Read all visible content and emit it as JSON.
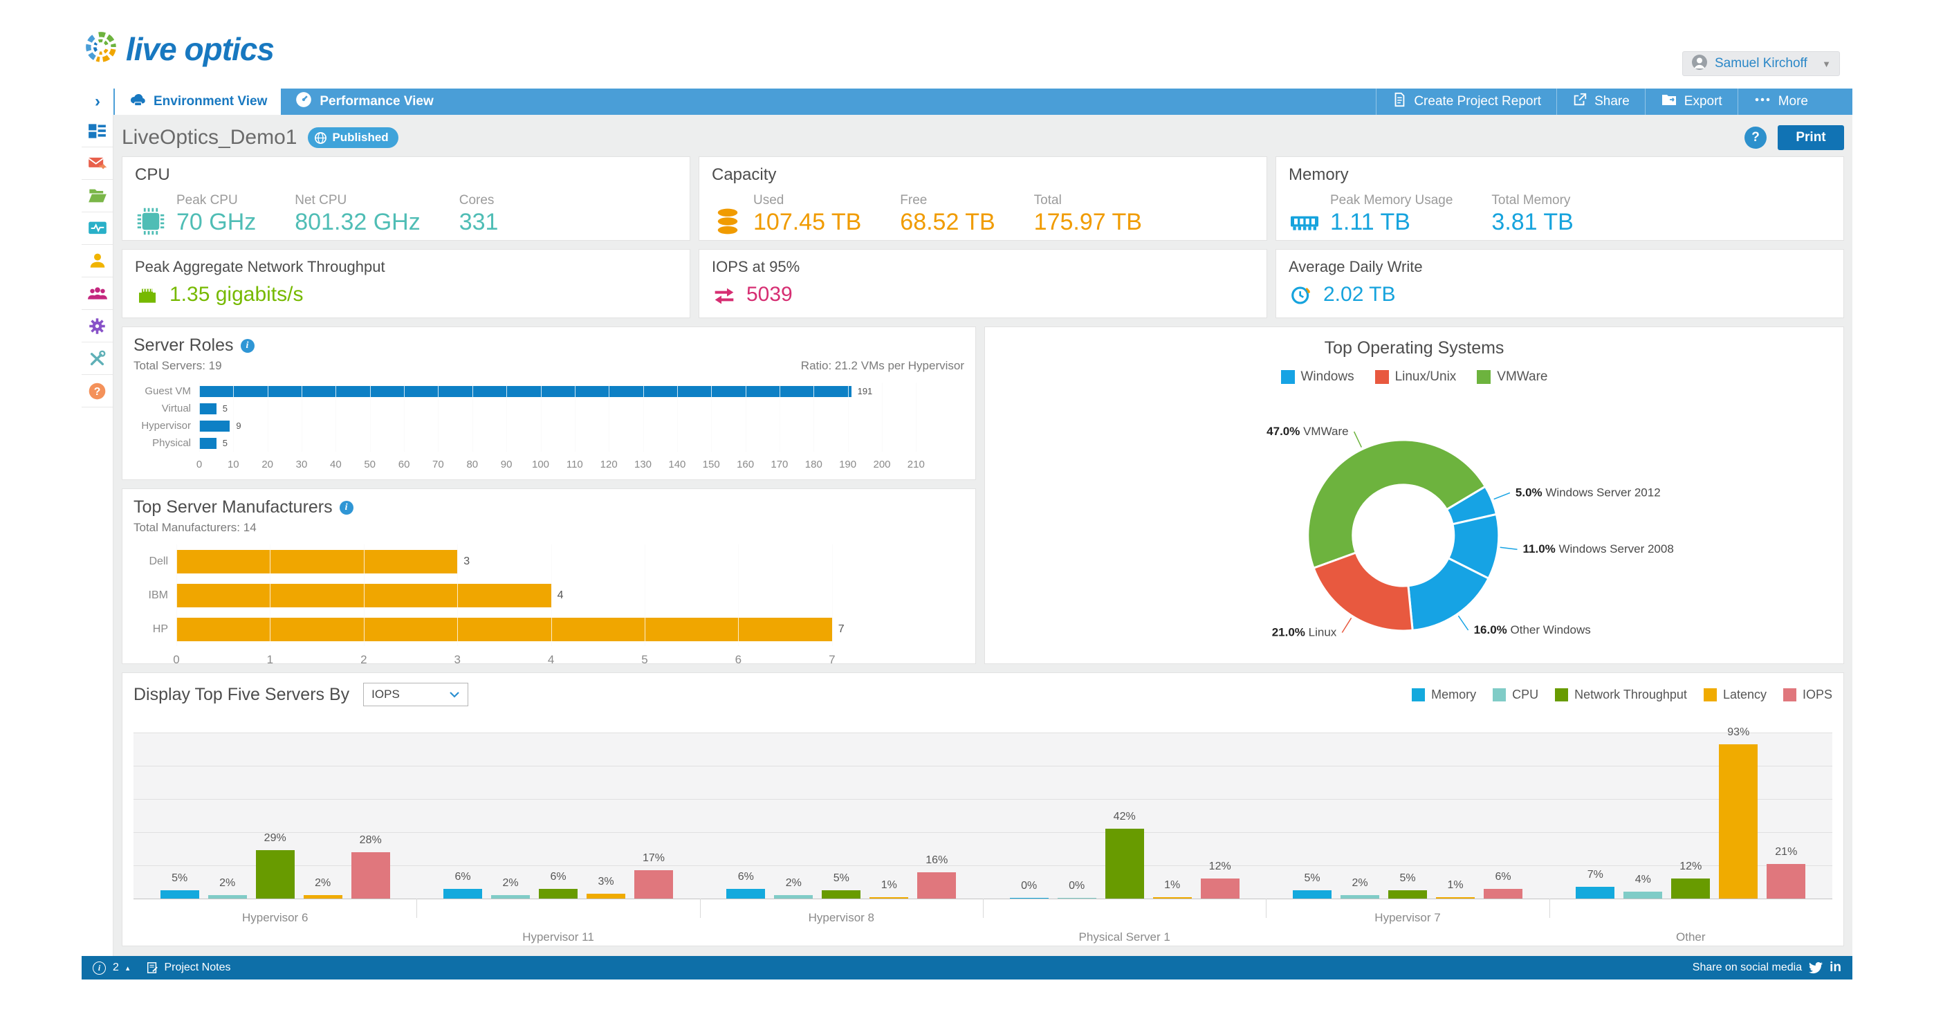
{
  "header": {
    "logo_text": "live optics",
    "user_name": "Samuel Kirchoff"
  },
  "nav": {
    "tabs": [
      {
        "label": "Environment View",
        "active": true
      },
      {
        "label": "Performance View",
        "active": false
      }
    ],
    "actions": [
      {
        "label": "Create Project Report"
      },
      {
        "label": "Share"
      },
      {
        "label": "Export"
      },
      {
        "label": "More"
      }
    ]
  },
  "sidebar": {
    "icons": [
      "dashboard-icon",
      "mail-icon",
      "folder-icon",
      "activity-icon",
      "user-icon",
      "group-icon",
      "settings-icon",
      "tools-icon",
      "help-icon"
    ]
  },
  "page": {
    "title": "LiveOptics_Demo1",
    "badge_label": "Published",
    "print_label": "Print"
  },
  "kpis": {
    "cpu": {
      "title": "CPU",
      "color": "#4fbdb5",
      "metrics": [
        {
          "label": "Peak CPU",
          "value": "70 GHz"
        },
        {
          "label": "Net CPU",
          "value": "801.32 GHz"
        },
        {
          "label": "Cores",
          "value": "331"
        }
      ]
    },
    "capacity": {
      "title": "Capacity",
      "color": "#f09b00",
      "metrics": [
        {
          "label": "Used",
          "value": "107.45 TB"
        },
        {
          "label": "Free",
          "value": "68.52 TB"
        },
        {
          "label": "Total",
          "value": "175.97 TB"
        }
      ]
    },
    "memory": {
      "title": "Memory",
      "color": "#16a3dd",
      "metrics": [
        {
          "label": "Peak Memory Usage",
          "value": "1.11 TB"
        },
        {
          "label": "Total Memory",
          "value": "3.81 TB"
        }
      ]
    },
    "network": {
      "title": "Peak Aggregate Network Throughput",
      "value": "1.35 gigabits/s",
      "color": "#76b900"
    },
    "iops": {
      "title": "IOPS at 95%",
      "value": "5039",
      "color": "#d62e72"
    },
    "adw": {
      "title": "Average Daily Write",
      "value": "2.02 TB",
      "color": "#16a3dd"
    }
  },
  "chart_data": [
    {
      "type": "bar",
      "orientation": "horizontal",
      "title": "Server Roles",
      "subtitle_left": "Total Servers: 19",
      "subtitle_right": "Ratio: 21.2 VMs per Hypervisor",
      "categories": [
        "Guest VM",
        "Virtual",
        "Hypervisor",
        "Physical"
      ],
      "values": [
        191,
        5,
        9,
        5
      ],
      "xlim": [
        0,
        215
      ],
      "xticks": [
        0,
        10,
        20,
        30,
        40,
        50,
        60,
        70,
        80,
        90,
        100,
        110,
        120,
        130,
        140,
        150,
        160,
        170,
        180,
        190,
        200,
        210
      ],
      "bar_color": "#0d80c5",
      "grid": true
    },
    {
      "type": "bar",
      "orientation": "horizontal",
      "title": "Top Server Manufacturers",
      "subtitle_left": "Total Manufacturers: 14",
      "categories": [
        "Dell",
        "IBM",
        "HP"
      ],
      "values": [
        3,
        4,
        7
      ],
      "xlim": [
        0,
        7.6
      ],
      "xticks": [
        0,
        1,
        2,
        3,
        4,
        5,
        6,
        7
      ],
      "bar_color": "#f0a600",
      "grid": true
    },
    {
      "type": "pie",
      "donut": true,
      "title": "Top Operating Systems",
      "start_angle": 250,
      "legend": [
        {
          "label": "Windows",
          "color": "#16a3e4"
        },
        {
          "label": "Linux/Unix",
          "color": "#e8593f"
        },
        {
          "label": "VMWare",
          "color": "#6db33e"
        }
      ],
      "slices": [
        {
          "label": "VMWare",
          "value": 47.0,
          "color": "#6db33e"
        },
        {
          "label": "Windows Server 2012",
          "value": 5.0,
          "color": "#16a3e4"
        },
        {
          "label": "Windows Server 2008",
          "value": 11.0,
          "color": "#16a3e4"
        },
        {
          "label": "Other Windows",
          "value": 16.0,
          "color": "#16a3e4"
        },
        {
          "label": "Linux",
          "value": 21.0,
          "color": "#e8593f"
        }
      ]
    },
    {
      "type": "bar",
      "orientation": "vertical",
      "grouped": true,
      "title": "Display Top Five Servers By",
      "selector_value": "IOPS",
      "categories": [
        "Hypervisor 6",
        "Hypervisor 11",
        "Hypervisor 8",
        "Physical Server 1",
        "Hypervisor 7",
        "Other"
      ],
      "series": [
        {
          "name": "Memory",
          "color": "#14a9dd",
          "values": [
            5,
            6,
            6,
            0,
            5,
            7
          ]
        },
        {
          "name": "CPU",
          "color": "#80ccc7",
          "values": [
            2,
            2,
            2,
            0,
            2,
            4
          ]
        },
        {
          "name": "Network Throughput",
          "color": "#689b00",
          "values": [
            29,
            6,
            5,
            42,
            5,
            12
          ]
        },
        {
          "name": "Latency",
          "color": "#f0ab00",
          "values": [
            2,
            3,
            1,
            1,
            1,
            93
          ]
        },
        {
          "name": "IOPS",
          "color": "#e0777d",
          "values": [
            28,
            17,
            16,
            12,
            6,
            21
          ]
        }
      ],
      "unit": "%",
      "ylim": [
        0,
        100
      ],
      "gridlines_pct": [
        20,
        40,
        60,
        80,
        100
      ]
    }
  ],
  "footer": {
    "count": "2",
    "notes_label": "Project Notes",
    "share_label": "Share on social media",
    "linkedin_label": "in"
  },
  "colors": {
    "nav_blue": "#4a9ed7",
    "brand_blue": "#1878c0",
    "footer_blue": "#0e6fa8",
    "teal": "#4fbdb5",
    "orange": "#f09b00",
    "blue": "#16a3dd",
    "green": "#76b900",
    "pink": "#d62e72",
    "amber": "#f0a600",
    "bar_blue": "#0d80c5"
  }
}
